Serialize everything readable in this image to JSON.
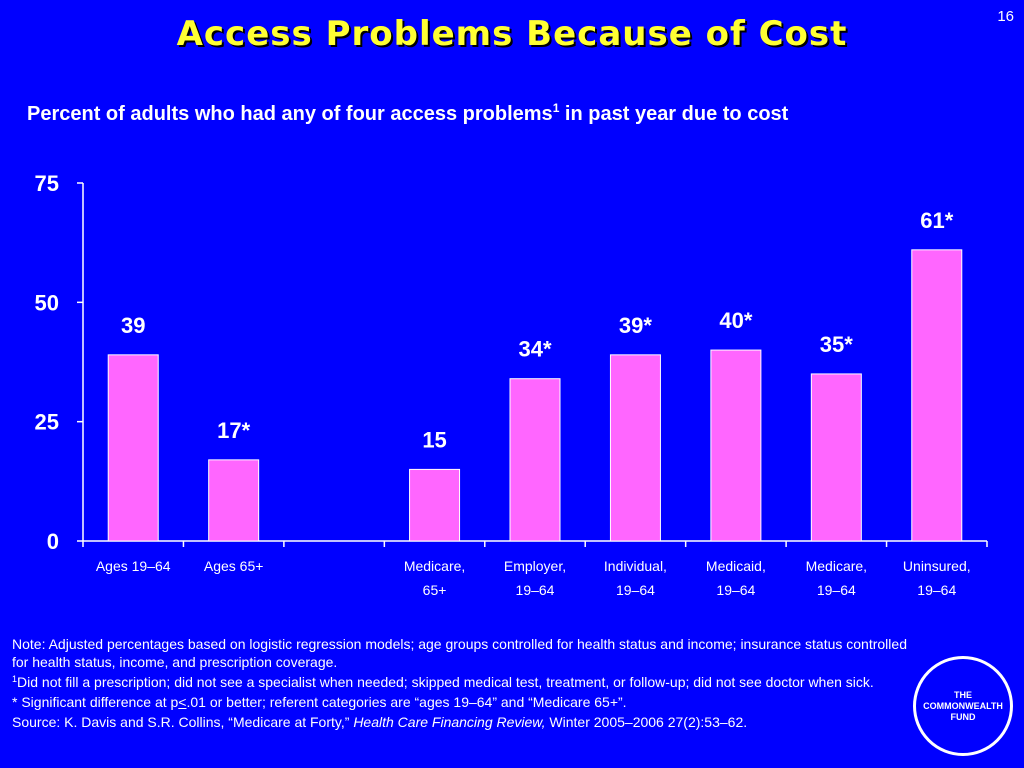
{
  "slide": {
    "page_number": "16",
    "title": "Access Problems Because of Cost",
    "subtitle_main": "Percent of adults who had any of four access problems",
    "subtitle_sup": "1",
    "subtitle_rest": " in past year due to cost"
  },
  "notes": {
    "note": "Note: Adjusted percentages based on logistic regression models; age groups controlled for health status and income; insurance status controlled for health status, income, and prescription coverage.",
    "footnote_marker": "1",
    "footnote_text": "Did not fill a prescription; did not see a specialist when needed; skipped medical test, treatment, or follow-up; did not see doctor when sick.",
    "sig_before": "* Significant difference at p",
    "sig_symbol": "<",
    "sig_after": ".01 or better; referent categories are “ages 19–64” and “Medicare 65+”.",
    "source_before": "Source: K. Davis and S.R. Collins, “Medicare at Forty,” ",
    "source_journal": "Health Care Financing Review,",
    "source_after": " Winter 2005–2006 27(2):53–62."
  },
  "logo": {
    "line1": "THE",
    "line2": "COMMONWEALTH",
    "line3": "FUND"
  },
  "chart_data": {
    "type": "bar",
    "ylim": [
      0,
      75
    ],
    "yticks": [
      0,
      25,
      50,
      75
    ],
    "grid": false,
    "bar_color": "#ff66ff",
    "bar_stroke": "#ffffff",
    "categories": [
      {
        "line1": "Ages 19–64",
        "line2": "",
        "value": 39,
        "label": "39"
      },
      {
        "line1": "Ages 65+",
        "line2": "",
        "value": 17,
        "label": "17*"
      },
      {
        "line1": "",
        "line2": "",
        "value": null,
        "label": ""
      },
      {
        "line1": "Medicare,",
        "line2": "65+",
        "value": 15,
        "label": "15"
      },
      {
        "line1": "Employer,",
        "line2": "19–64",
        "value": 34,
        "label": "34*"
      },
      {
        "line1": "Individual,",
        "line2": "19–64",
        "value": 39,
        "label": "39*"
      },
      {
        "line1": "Medicaid,",
        "line2": "19–64",
        "value": 40,
        "label": "40*"
      },
      {
        "line1": "Medicare,",
        "line2": "19–64",
        "value": 35,
        "label": "35*"
      },
      {
        "line1": "Uninsured,",
        "line2": "19–64",
        "value": 61,
        "label": "61*"
      }
    ]
  }
}
